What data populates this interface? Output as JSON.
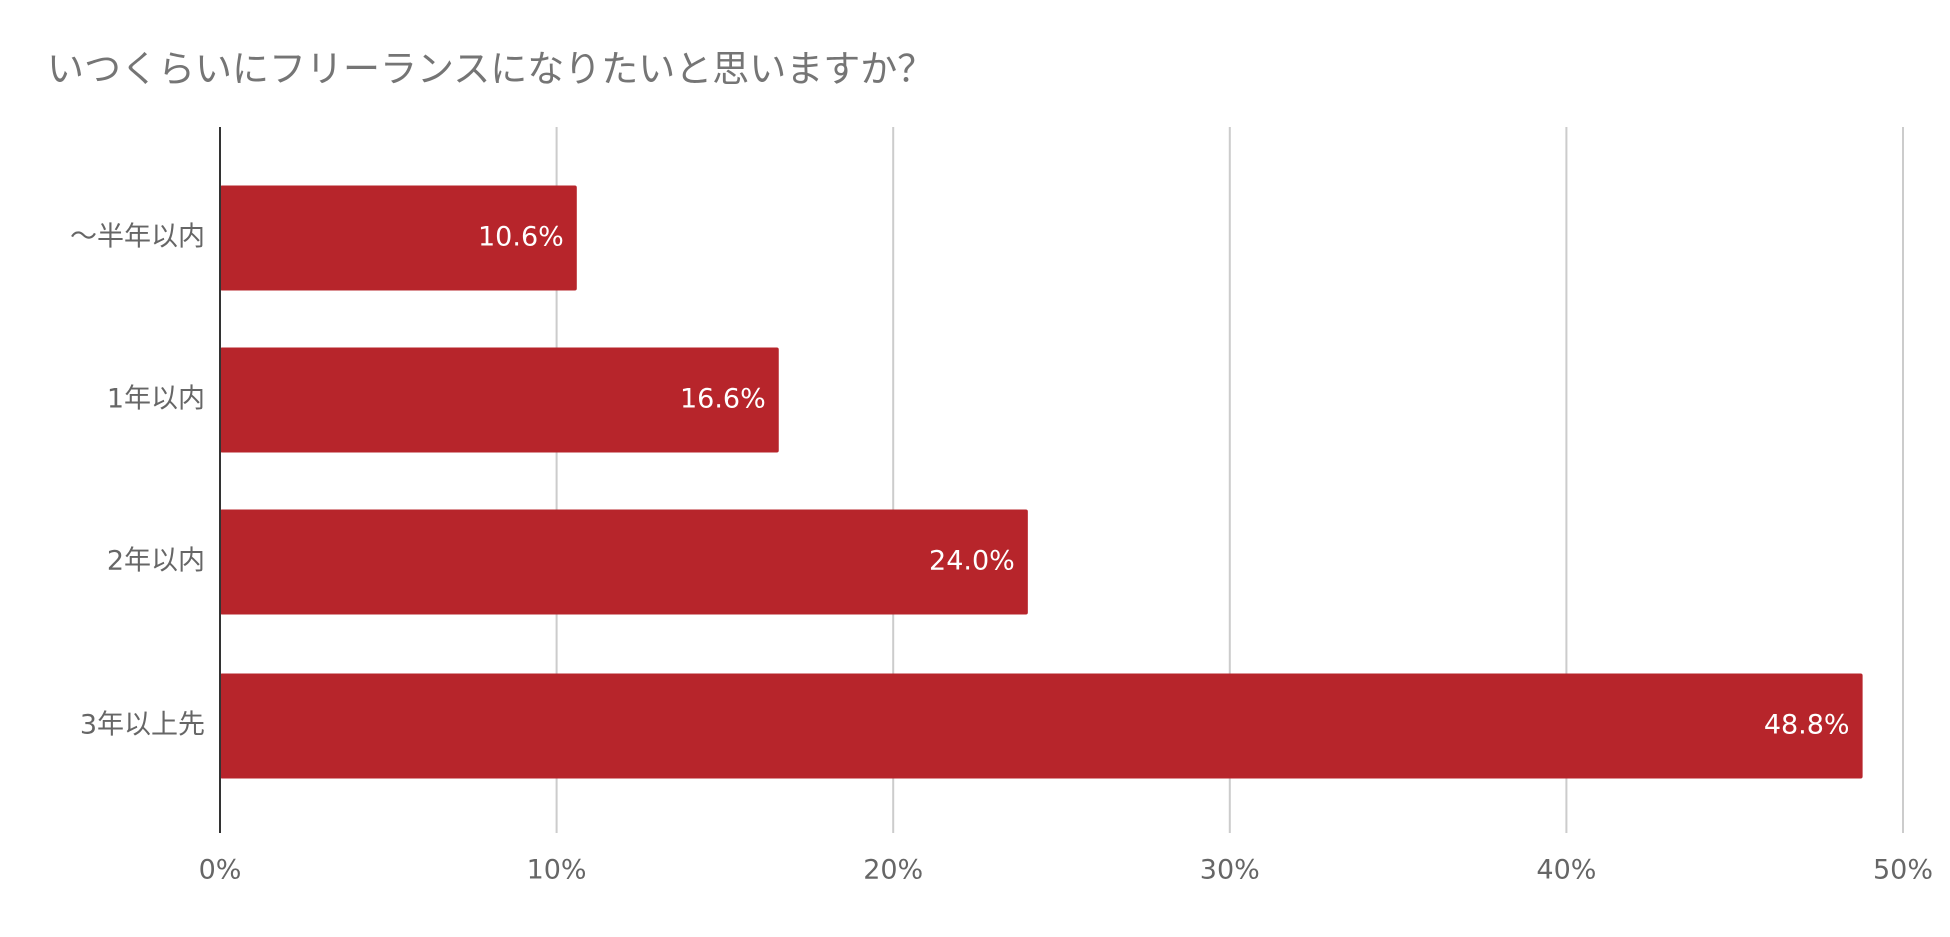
{
  "chart_data": {
    "type": "barh",
    "title": "いつくらいにフリーランスになりたいと思いますか？",
    "categories": [
      "～半年以内",
      "1年以内",
      "2年以内",
      "3年以上先"
    ],
    "values": [
      10.6,
      16.6,
      24.0,
      48.8
    ],
    "value_labels": [
      "10.6%",
      "16.6%",
      "24.0%",
      "48.8%"
    ],
    "color": "#b7252b",
    "xlim": [
      0,
      50
    ],
    "xticks": [
      {
        "value": 0,
        "label": "0%"
      },
      {
        "value": 10,
        "label": "10%"
      },
      {
        "value": 20,
        "label": "20%"
      },
      {
        "value": 30,
        "label": "30%"
      },
      {
        "value": 40,
        "label": "40%"
      },
      {
        "value": 50,
        "label": "50%"
      }
    ],
    "grid": true
  }
}
